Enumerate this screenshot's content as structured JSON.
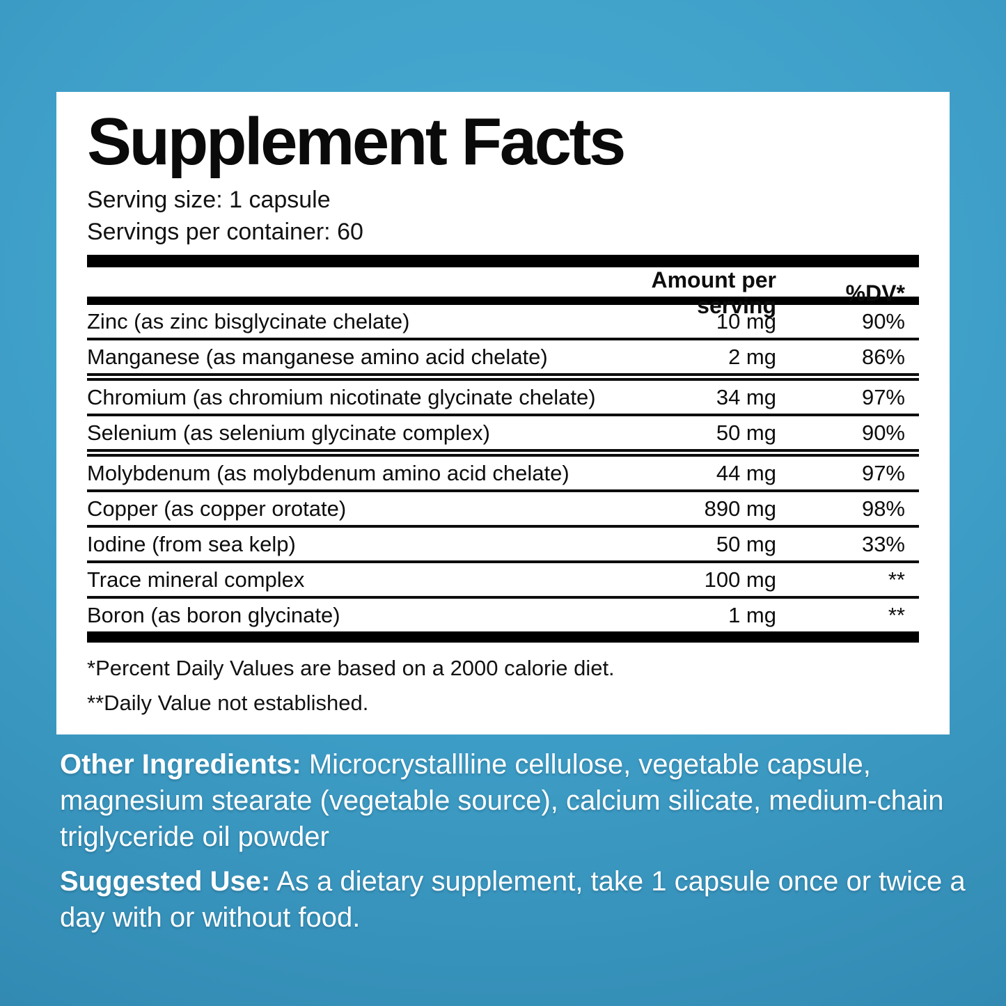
{
  "colors": {
    "background_top": "#48ACD2",
    "background_bottom": "#2E84AC",
    "panel_background": "#FFFFFF",
    "panel_text": "#0D0D0D",
    "bottom_text": "#FFFFFF"
  },
  "panel": {
    "title": "Supplement Facts",
    "serving_size": "Serving size: 1 capsule",
    "servings_per_container": "Servings per container: 60",
    "header": {
      "amount": "Amount per serving",
      "dv": "%DV*"
    },
    "rows": [
      {
        "name": "Zinc (as zinc bisglycinate chelate)",
        "amount": "10 mg",
        "dv": "90%"
      },
      {
        "name": "Manganese (as manganese amino acid chelate)",
        "amount": "2 mg",
        "dv": "86%"
      },
      {
        "name": "Chromium (as chromium nicotinate glycinate chelate)",
        "amount": "34 mg",
        "dv": "97%"
      },
      {
        "name": "Selenium (as selenium glycinate complex)",
        "amount": "50 mg",
        "dv": "90%"
      },
      {
        "name": "Molybdenum (as molybdenum amino acid chelate)",
        "amount": "44 mg",
        "dv": "97%"
      },
      {
        "name": "Copper (as copper orotate)",
        "amount": "890 mg",
        "dv": "98%"
      },
      {
        "name": "Iodine (from sea kelp)",
        "amount": "50 mg",
        "dv": "33%"
      },
      {
        "name": "Trace mineral complex",
        "amount": "100 mg",
        "dv": "**"
      },
      {
        "name": "Boron (as boron glycinate)",
        "amount": "1 mg",
        "dv": "**"
      }
    ],
    "footnotes": {
      "percent_basis": "*Percent Daily Values are based on a 2000 calorie diet.",
      "not_established": "**Daily Value not established."
    }
  },
  "other_ingredients": {
    "label": "Other Ingredients:",
    "text": "Microcrystallline cellulose, vegetable capsule, magnesium stearate (vegetable source), calcium silicate, medium-chain triglyceride oil powder"
  },
  "suggested_use": {
    "label": "Suggested Use:",
    "text": "As a dietary supplement, take 1 capsule once or twice a day with or without food."
  }
}
